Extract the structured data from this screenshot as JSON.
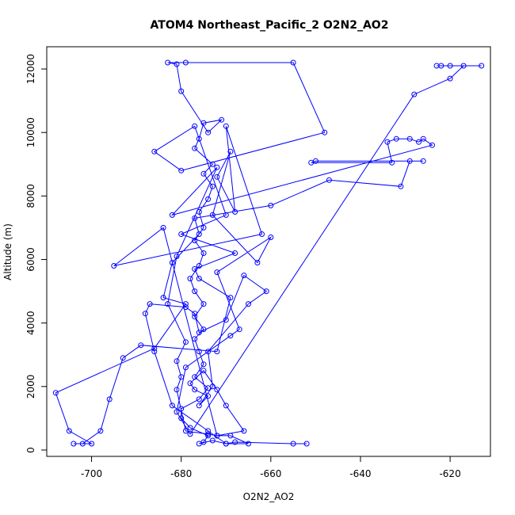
{
  "chart_data": {
    "type": "scatter",
    "title": "ATOM4 Northeast_Pacific_2 O2N2_AO2",
    "xlabel": "O2N2_AO2",
    "ylabel": "Altitude (m)",
    "xlim": [
      -710,
      -611
    ],
    "ylim": [
      -200,
      12700
    ],
    "x_ticks": [
      -700,
      -680,
      -660,
      -640,
      -620
    ],
    "y_ticks": [
      0,
      2000,
      4000,
      6000,
      8000,
      10000,
      12000
    ],
    "color": "#0000ff",
    "grid": false,
    "legend": "none",
    "series": [
      {
        "points": [
          [
            -652,
            200
          ],
          [
            -655,
            200
          ],
          [
            -668,
            250
          ],
          [
            -670,
            200
          ],
          [
            -673,
            300
          ],
          [
            -676,
            200
          ],
          [
            -675,
            250
          ],
          [
            -674,
            450
          ],
          [
            -678,
            700
          ],
          [
            -680,
            1000
          ],
          [
            -680,
            1300
          ],
          [
            -676,
            1600
          ],
          [
            -674,
            1950
          ],
          [
            -677,
            2300
          ],
          [
            -675,
            2700
          ],
          [
            -676,
            3100
          ],
          [
            -677,
            3500
          ],
          [
            -675,
            3800
          ],
          [
            -677,
            4200
          ],
          [
            -675,
            4600
          ],
          [
            -677,
            5000
          ],
          [
            -678,
            5400
          ],
          [
            -676,
            5800
          ],
          [
            -675,
            6200
          ],
          [
            -677,
            6600
          ],
          [
            -675,
            7000
          ],
          [
            -676,
            7500
          ],
          [
            -674,
            7900
          ],
          [
            -673,
            8300
          ],
          [
            -675,
            8700
          ],
          [
            -673,
            9000
          ],
          [
            -677,
            9500
          ],
          [
            -676,
            9800
          ],
          [
            -675,
            10300
          ],
          [
            -671,
            10400
          ],
          [
            -674,
            10000
          ],
          [
            -680,
            11300
          ],
          [
            -681,
            12150
          ],
          [
            -683,
            12200
          ],
          [
            -679,
            12200
          ],
          [
            -655,
            12200
          ],
          [
            -648,
            10000
          ],
          [
            -680,
            8800
          ],
          [
            -686,
            9400
          ],
          [
            -677,
            10200
          ],
          [
            -670,
            7400
          ],
          [
            -680,
            6800
          ],
          [
            -668,
            6200
          ],
          [
            -677,
            5700
          ],
          [
            -676,
            5400
          ],
          [
            -669,
            4800
          ],
          [
            -672,
            3100
          ],
          [
            -689,
            3300
          ],
          [
            -693,
            2900
          ],
          [
            -696,
            1600
          ],
          [
            -698,
            600
          ],
          [
            -702,
            200
          ],
          [
            -704,
            200
          ],
          [
            -700,
            200
          ],
          [
            -705,
            600
          ],
          [
            -708,
            1800
          ],
          [
            -686,
            3200
          ],
          [
            -679,
            4600
          ],
          [
            -684,
            4800
          ],
          [
            -682,
            5900
          ],
          [
            -676,
            6800
          ],
          [
            -677,
            7300
          ],
          [
            -660,
            7700
          ],
          [
            -647,
            8500
          ],
          [
            -631,
            8300
          ],
          [
            -629,
            9100
          ],
          [
            -626,
            9100
          ],
          [
            -650,
            9100
          ],
          [
            -651,
            9050
          ],
          [
            -633,
            9050
          ],
          [
            -634,
            9700
          ],
          [
            -632,
            9800
          ],
          [
            -629,
            9800
          ],
          [
            -627,
            9700
          ],
          [
            -626,
            9800
          ],
          [
            -624,
            9600
          ],
          [
            -682,
            7400
          ],
          [
            -672,
            8900
          ],
          [
            -681,
            6100
          ],
          [
            -683,
            4600
          ],
          [
            -679,
            3400
          ],
          [
            -681,
            2800
          ],
          [
            -680,
            2300
          ],
          [
            -681,
            1900
          ],
          [
            -679,
            600
          ],
          [
            -674,
            500
          ],
          [
            -672,
            450
          ],
          [
            -669,
            450
          ],
          [
            -665,
            200
          ],
          [
            -670,
            200
          ],
          [
            -674,
            600
          ],
          [
            -682,
            1400
          ],
          [
            -686,
            3100
          ],
          [
            -688,
            4300
          ],
          [
            -687,
            4600
          ],
          [
            -679,
            4500
          ],
          [
            -677,
            4300
          ],
          [
            -676,
            3700
          ],
          [
            -670,
            4100
          ],
          [
            -666,
            5500
          ],
          [
            -661,
            5000
          ],
          [
            -665,
            4600
          ],
          [
            -674,
            3100
          ],
          [
            -673,
            2000
          ],
          [
            -676,
            1400
          ],
          [
            -674,
            1700
          ],
          [
            -677,
            1900
          ],
          [
            -678,
            2100
          ],
          [
            -675,
            2500
          ],
          [
            -672,
            1900
          ],
          [
            -670,
            1400
          ],
          [
            -666,
            600
          ],
          [
            -672,
            450
          ],
          [
            -684,
            7000
          ],
          [
            -695,
            5800
          ],
          [
            -662,
            6800
          ],
          [
            -670,
            10200
          ],
          [
            -668,
            7500
          ],
          [
            -672,
            8600
          ],
          [
            -669,
            9400
          ],
          [
            -673,
            7400
          ],
          [
            -663,
            5900
          ],
          [
            -660,
            6700
          ],
          [
            -672,
            5600
          ],
          [
            -667,
            3800
          ],
          [
            -669,
            3600
          ],
          [
            -679,
            2600
          ],
          [
            -681,
            1200
          ],
          [
            -678,
            500
          ],
          [
            -628,
            11200
          ],
          [
            -620,
            11700
          ],
          [
            -617,
            12100
          ],
          [
            -613,
            12100
          ],
          [
            -620,
            12100
          ],
          [
            -622,
            12100
          ],
          [
            -623,
            12100
          ]
        ]
      }
    ]
  }
}
